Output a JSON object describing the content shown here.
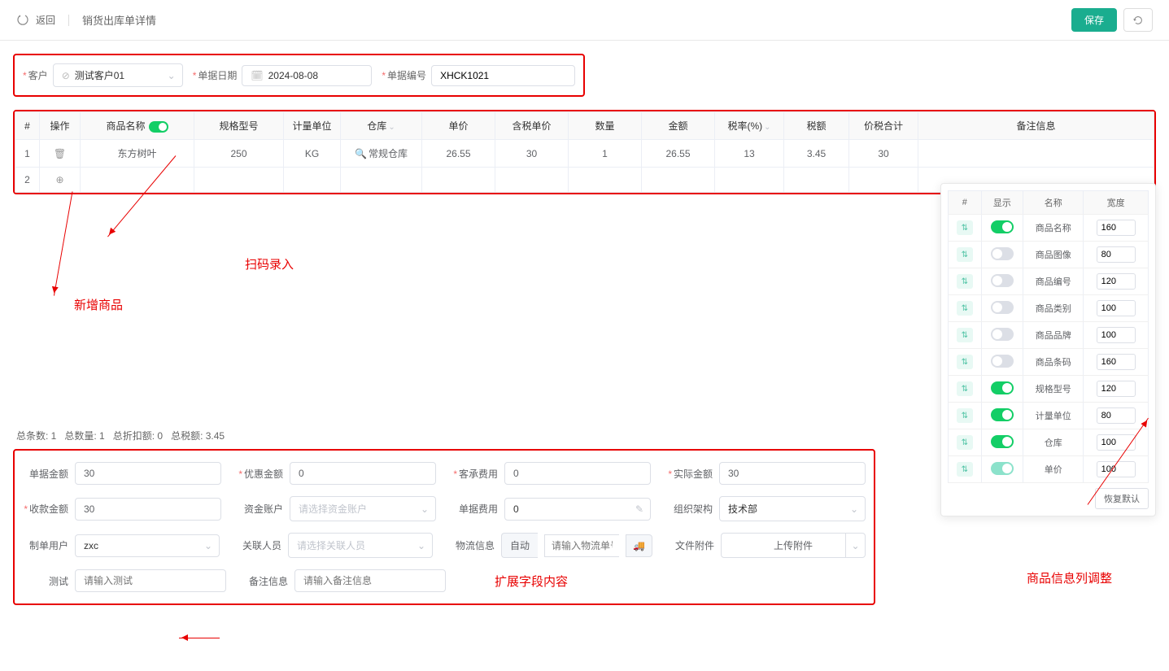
{
  "header": {
    "back": "返回",
    "title": "销货出库单详情",
    "save": "保存"
  },
  "filters": {
    "customer_label": "客户",
    "customer_value": "测试客户01",
    "date_label": "单据日期",
    "date_value": "2024-08-08",
    "doc_no_label": "单据编号",
    "doc_no_value": "XHCK1021"
  },
  "table": {
    "headers": {
      "idx": "#",
      "op": "操作",
      "name": "商品名称",
      "spec": "规格型号",
      "unit": "计量单位",
      "warehouse": "仓库",
      "price": "单价",
      "tax_price": "含税单价",
      "qty": "数量",
      "amount": "金额",
      "tax_rate": "税率(%)",
      "tax_amount": "税额",
      "total": "价税合计",
      "remark": "备注信息"
    },
    "rows": [
      {
        "idx": "1",
        "name": "东方树叶",
        "spec": "250",
        "unit": "KG",
        "warehouse": "常规仓库",
        "price": "26.55",
        "tax_price": "30",
        "qty": "1",
        "amount": "26.55",
        "tax_rate": "13",
        "tax_amount": "3.45",
        "total": "30",
        "remark": ""
      },
      {
        "idx": "2",
        "name": "",
        "spec": "",
        "unit": "",
        "warehouse": "",
        "price": "",
        "tax_price": "",
        "qty": "",
        "amount": "",
        "tax_rate": "",
        "tax_amount": "",
        "total": "",
        "remark": ""
      }
    ]
  },
  "annotations": {
    "scan": "扫码录入",
    "add_product": "新增商品",
    "column_adjust": "商品信息列调整",
    "extended_field": "扩展字段内容"
  },
  "config": {
    "headers": {
      "sort": "#",
      "show": "显示",
      "name": "名称",
      "width": "宽度"
    },
    "items": [
      {
        "name": "商品名称",
        "on": true,
        "light": false,
        "width": "160"
      },
      {
        "name": "商品图像",
        "on": false,
        "light": false,
        "width": "80"
      },
      {
        "name": "商品编号",
        "on": false,
        "light": false,
        "width": "120"
      },
      {
        "name": "商品类别",
        "on": false,
        "light": false,
        "width": "100"
      },
      {
        "name": "商品品牌",
        "on": false,
        "light": false,
        "width": "100"
      },
      {
        "name": "商品条码",
        "on": false,
        "light": false,
        "width": "160"
      },
      {
        "name": "规格型号",
        "on": true,
        "light": false,
        "width": "120"
      },
      {
        "name": "计量单位",
        "on": true,
        "light": false,
        "width": "80"
      },
      {
        "name": "仓库",
        "on": true,
        "light": false,
        "width": "100"
      },
      {
        "name": "单价",
        "on": true,
        "light": true,
        "width": "100"
      }
    ],
    "restore": "恢复默认"
  },
  "summary": {
    "total_count": "总条数:  1",
    "total_qty": "总数量:  1",
    "total_discount": "总折扣额:  0",
    "total_tax": "总税额:  3.45"
  },
  "form": {
    "doc_amount_label": "单据金额",
    "doc_amount": "30",
    "discount_label": "优惠金额",
    "discount": "0",
    "cust_fee_label": "客承费用",
    "cust_fee": "0",
    "actual_label": "实际金额",
    "actual": "30",
    "receipt_label": "收款金额",
    "receipt": "30",
    "account_label": "资金账户",
    "account_placeholder": "请选择资金账户",
    "doc_fee_label": "单据费用",
    "doc_fee": "0",
    "org_label": "组织架构",
    "org": "技术部",
    "creator_label": "制单用户",
    "creator": "zxc",
    "relation_label": "关联人员",
    "relation_placeholder": "请选择关联人员",
    "logistics_label": "物流信息",
    "logistics_auto": "自动",
    "logistics_placeholder": "请输入物流单号",
    "attach_label": "文件附件",
    "attach_btn": "上传附件",
    "test_label": "测试",
    "test_placeholder": "请输入测试",
    "remark_label": "备注信息",
    "remark_placeholder": "请输入备注信息"
  }
}
